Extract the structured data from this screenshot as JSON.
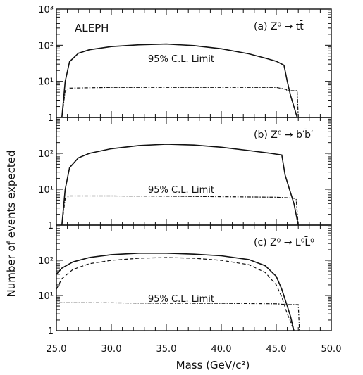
{
  "experiment": "ALEPH",
  "chart_data": [
    {
      "type": "line",
      "panel_label": "(a) Z⁰ → tt̄",
      "limit_label": "95% C.L. Limit",
      "xlim": [
        25.0,
        50.0
      ],
      "ylim": [
        1,
        1000
      ],
      "yscale": "log",
      "series": [
        {
          "style": "solid",
          "x": [
            25.5,
            25.8,
            26.2,
            27.0,
            28.0,
            30.0,
            32.5,
            35.0,
            37.5,
            40.0,
            42.5,
            44.0,
            45.0,
            45.7,
            46.0,
            46.3,
            46.6,
            46.9
          ],
          "y": [
            1,
            10,
            35,
            60,
            75,
            92,
            103,
            108,
            98,
            80,
            58,
            44,
            36,
            28,
            10,
            4,
            2,
            1
          ]
        },
        {
          "style": "dot-dash",
          "x": [
            25.5,
            25.8,
            26.2,
            30.0,
            35.0,
            40.0,
            45.0,
            45.9,
            46.0,
            46.9,
            47.0
          ],
          "y": [
            1,
            5.5,
            6.5,
            6.8,
            6.8,
            6.8,
            6.8,
            6.0,
            5.5,
            5.5,
            1
          ]
        }
      ]
    },
    {
      "type": "line",
      "panel_label": "(b) Z⁰ → b′b̄′",
      "limit_label": "95% C.L. Limit",
      "xlim": [
        25.0,
        50.0
      ],
      "ylim": [
        1,
        1000
      ],
      "yscale": "log",
      "series": [
        {
          "style": "solid",
          "x": [
            25.5,
            25.8,
            26.2,
            27.0,
            28.0,
            30.0,
            32.5,
            35.0,
            37.5,
            40.0,
            42.5,
            44.5,
            45.5,
            45.8,
            46.2,
            46.6,
            47.0
          ],
          "y": [
            1,
            10,
            40,
            75,
            100,
            135,
            165,
            180,
            170,
            148,
            120,
            100,
            90,
            25,
            10,
            4,
            1
          ]
        },
        {
          "style": "dot-dash",
          "x": [
            25.5,
            25.8,
            26.2,
            30.0,
            35.0,
            40.0,
            45.0,
            46.0,
            46.8,
            47.0
          ],
          "y": [
            1,
            5.5,
            6.5,
            6.5,
            6.4,
            6.2,
            6.0,
            5.8,
            5.5,
            1
          ]
        }
      ]
    },
    {
      "type": "line",
      "panel_label": "(c) Z⁰ → L⁰L̄⁰",
      "limit_label": "95% C.L. Limit",
      "xlim": [
        25.0,
        50.0
      ],
      "ylim": [
        1,
        1000
      ],
      "yscale": "log",
      "series": [
        {
          "style": "solid",
          "x": [
            25.0,
            25.5,
            26.5,
            28.0,
            30.0,
            32.5,
            35.0,
            37.5,
            40.0,
            42.5,
            44.0,
            45.0,
            45.5,
            46.0,
            46.3,
            46.6
          ],
          "y": [
            40,
            60,
            90,
            120,
            145,
            160,
            160,
            150,
            135,
            105,
            70,
            35,
            15,
            5,
            2.5,
            1
          ]
        },
        {
          "style": "dashed",
          "x": [
            25.0,
            25.5,
            26.5,
            28.0,
            30.0,
            32.5,
            35.0,
            37.5,
            40.0,
            42.5,
            44.0,
            45.0,
            45.5,
            46.0,
            46.3,
            46.6
          ],
          "y": [
            15,
            30,
            55,
            80,
            100,
            115,
            120,
            115,
            100,
            75,
            45,
            20,
            9,
            3,
            1.8,
            1
          ]
        },
        {
          "style": "dot-dash",
          "x": [
            25.0,
            30.0,
            35.0,
            40.0,
            45.0,
            46.0,
            47.0,
            47.1
          ],
          "y": [
            6.2,
            6.2,
            6.0,
            6.0,
            5.8,
            5.5,
            5.5,
            1
          ]
        }
      ]
    }
  ],
  "axes": {
    "ylabel": "Number of events expected",
    "xlabel": "Mass (GeV/c²)",
    "xticks": [
      "25.0",
      "30.0",
      "35.0",
      "40.0",
      "45.0",
      "50.0"
    ],
    "yticks_top_panel": [
      "1",
      "10¹",
      "10²",
      "10³"
    ],
    "yticks_other_panels": [
      "1",
      "10¹",
      "10²"
    ]
  }
}
